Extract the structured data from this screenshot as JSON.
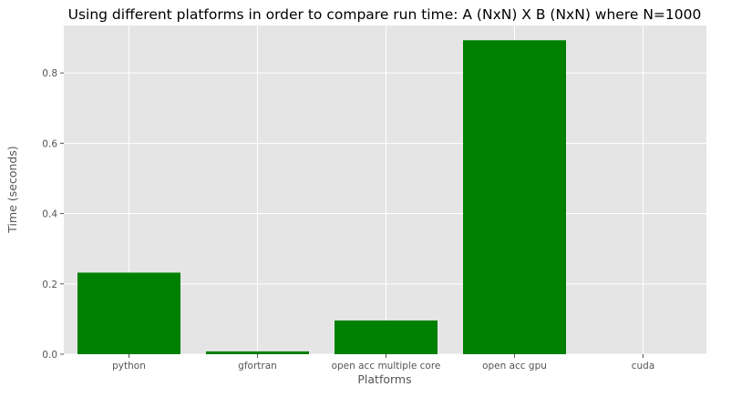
{
  "chart_data": {
    "type": "bar",
    "title": "Using different platforms in order to compare run time: A (NxN) X B (NxN) where N=1000",
    "xlabel": "Platforms",
    "ylabel": "Time (seconds)",
    "categories": [
      "python",
      "gfortran",
      "open acc multiple core",
      "open acc gpu",
      "cuda"
    ],
    "values": [
      0.232,
      0.008,
      0.096,
      0.893,
      0.0
    ],
    "ylim": [
      0,
      0.935
    ],
    "yticks": [
      0.0,
      0.2,
      0.4,
      0.6,
      0.8
    ],
    "ytick_labels": [
      "0.0",
      "0.2",
      "0.4",
      "0.6",
      "0.8"
    ],
    "grid": true,
    "style": "ggplot",
    "colors": {
      "bar": "#008000",
      "plot_background": "#e5e5e5",
      "grid": "#ffffff",
      "tick_text": "#555555",
      "title_text": "#000000"
    }
  }
}
